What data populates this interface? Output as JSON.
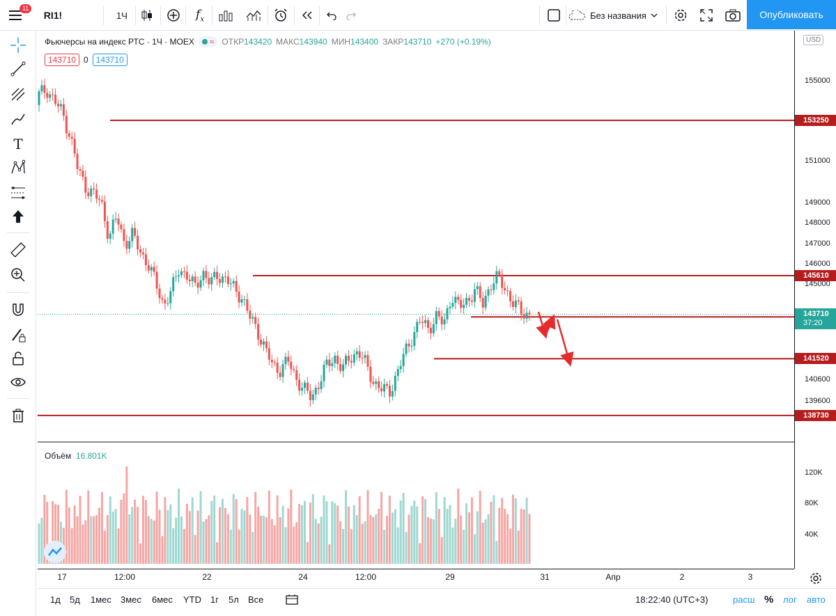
{
  "topbar": {
    "notifications": "11",
    "symbol": "RI1!",
    "interval": "1Ч",
    "layout_name": "Без названия",
    "publish_label": "Опубликовать"
  },
  "legend": {
    "title": "Фьючерсы на индекс РТС · 1Ч · MOEX",
    "open_label": "ОТКР",
    "open": "143420",
    "high_label": "МАКС",
    "high": "143940",
    "low_label": "МИН",
    "low": "143400",
    "close_label": "ЗАКР",
    "close": "143710",
    "change": "+270 (+0.19%)",
    "pill_symbol": "≈"
  },
  "price_boxes": {
    "bid": "143710",
    "spread": "0",
    "ask": "143710"
  },
  "volume": {
    "label": "Объём",
    "value": "16.801K",
    "ticks": [
      "120K",
      "80K",
      "40K"
    ]
  },
  "price_axis": {
    "currency": "USD",
    "labels": [
      "155000",
      "151000",
      "149000",
      "148000",
      "147000",
      "146000",
      "145000",
      "140600",
      "139600"
    ],
    "marks": [
      "153250",
      "145610",
      "143580",
      "141520",
      "138730"
    ],
    "last_price": "143710",
    "countdown": "37:20"
  },
  "time_axis": {
    "labels": [
      "17",
      "12:00",
      "22",
      "24",
      "12:00",
      "29",
      "31",
      "Апр",
      "2",
      "3"
    ]
  },
  "bottombar": {
    "ranges": [
      "1д",
      "5д",
      "1мес",
      "3мес",
      "6мес",
      "YTD",
      "1г",
      "5л",
      "Все"
    ],
    "clock": "18:22:40 (UTC+3)",
    "scale_ext": "расш",
    "scale_pct": "%",
    "scale_log": "лог",
    "scale_auto": "авто"
  },
  "colors": {
    "up": "#26a69a",
    "down": "#ef5350",
    "level": "#b71c1c",
    "accent": "#2196f3"
  },
  "chart_data": {
    "type": "candlestick",
    "levels": [
      153250,
      145610,
      143580,
      141520,
      138730
    ],
    "last_price": 143710,
    "close_approx": [
      154500,
      154800,
      154200,
      153600,
      152500,
      150800,
      150000,
      149600,
      149200,
      147500,
      148500,
      147200,
      147600,
      146800,
      146200,
      145200,
      144200,
      144800,
      146000,
      145600,
      145000,
      145800,
      145200,
      145700,
      145400,
      145000,
      144600,
      143600,
      143000,
      142000,
      141200,
      141000,
      141400,
      140600,
      140000,
      139600,
      140400,
      141200,
      141600,
      141000,
      141600,
      141900,
      141200,
      140400,
      140000,
      139900,
      140800,
      141800,
      142700,
      143400,
      143000,
      143600,
      143200,
      144700,
      144000,
      144400,
      144900,
      144200,
      145200,
      145500,
      144900,
      144200,
      143800,
      143710
    ]
  }
}
